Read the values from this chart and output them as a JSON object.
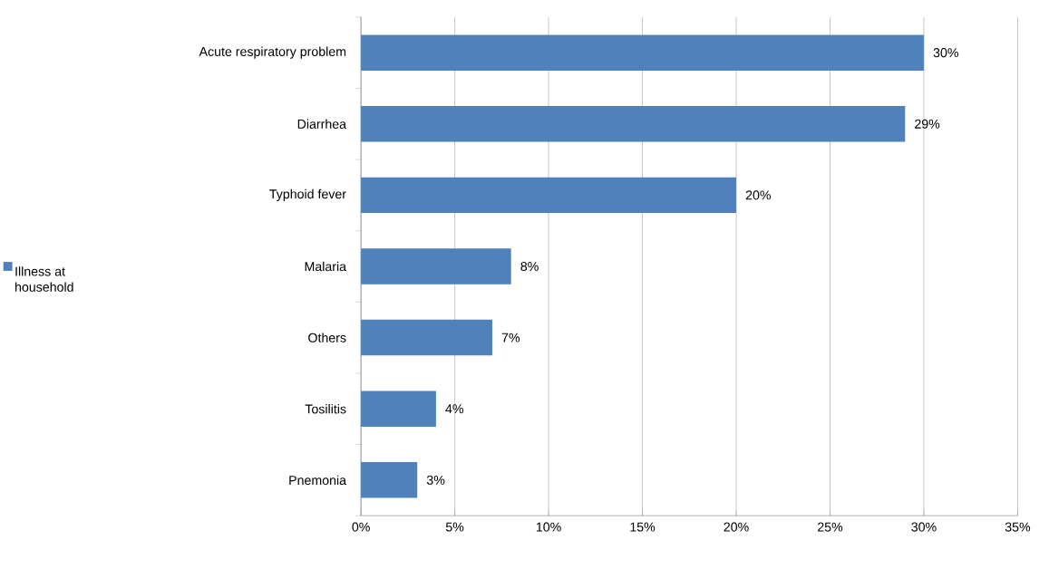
{
  "chart_data": {
    "type": "bar",
    "orientation": "horizontal",
    "categories": [
      "Acute respiratory problem",
      "Diarrhea",
      "Typhoid fever",
      "Malaria",
      "Others",
      "Tosilitis",
      "Pnemonia"
    ],
    "series": [
      {
        "name": "Illness at household",
        "color": "#4f81bd",
        "values": [
          30,
          29,
          20,
          8,
          7,
          4,
          3
        ],
        "value_labels": [
          "30%",
          "29%",
          "20%",
          "8%",
          "7%",
          "4%",
          "3%"
        ]
      }
    ],
    "xlim": [
      0,
      35
    ],
    "xticks": [
      {
        "value": 0,
        "label": "0%"
      },
      {
        "value": 5,
        "label": "5%"
      },
      {
        "value": 10,
        "label": "10%"
      },
      {
        "value": 15,
        "label": "15%"
      },
      {
        "value": 20,
        "label": "20%"
      },
      {
        "value": 25,
        "label": "25%"
      },
      {
        "value": 30,
        "label": "30%"
      },
      {
        "value": 35,
        "label": "35%"
      }
    ],
    "grid": "x",
    "legend": "left"
  }
}
